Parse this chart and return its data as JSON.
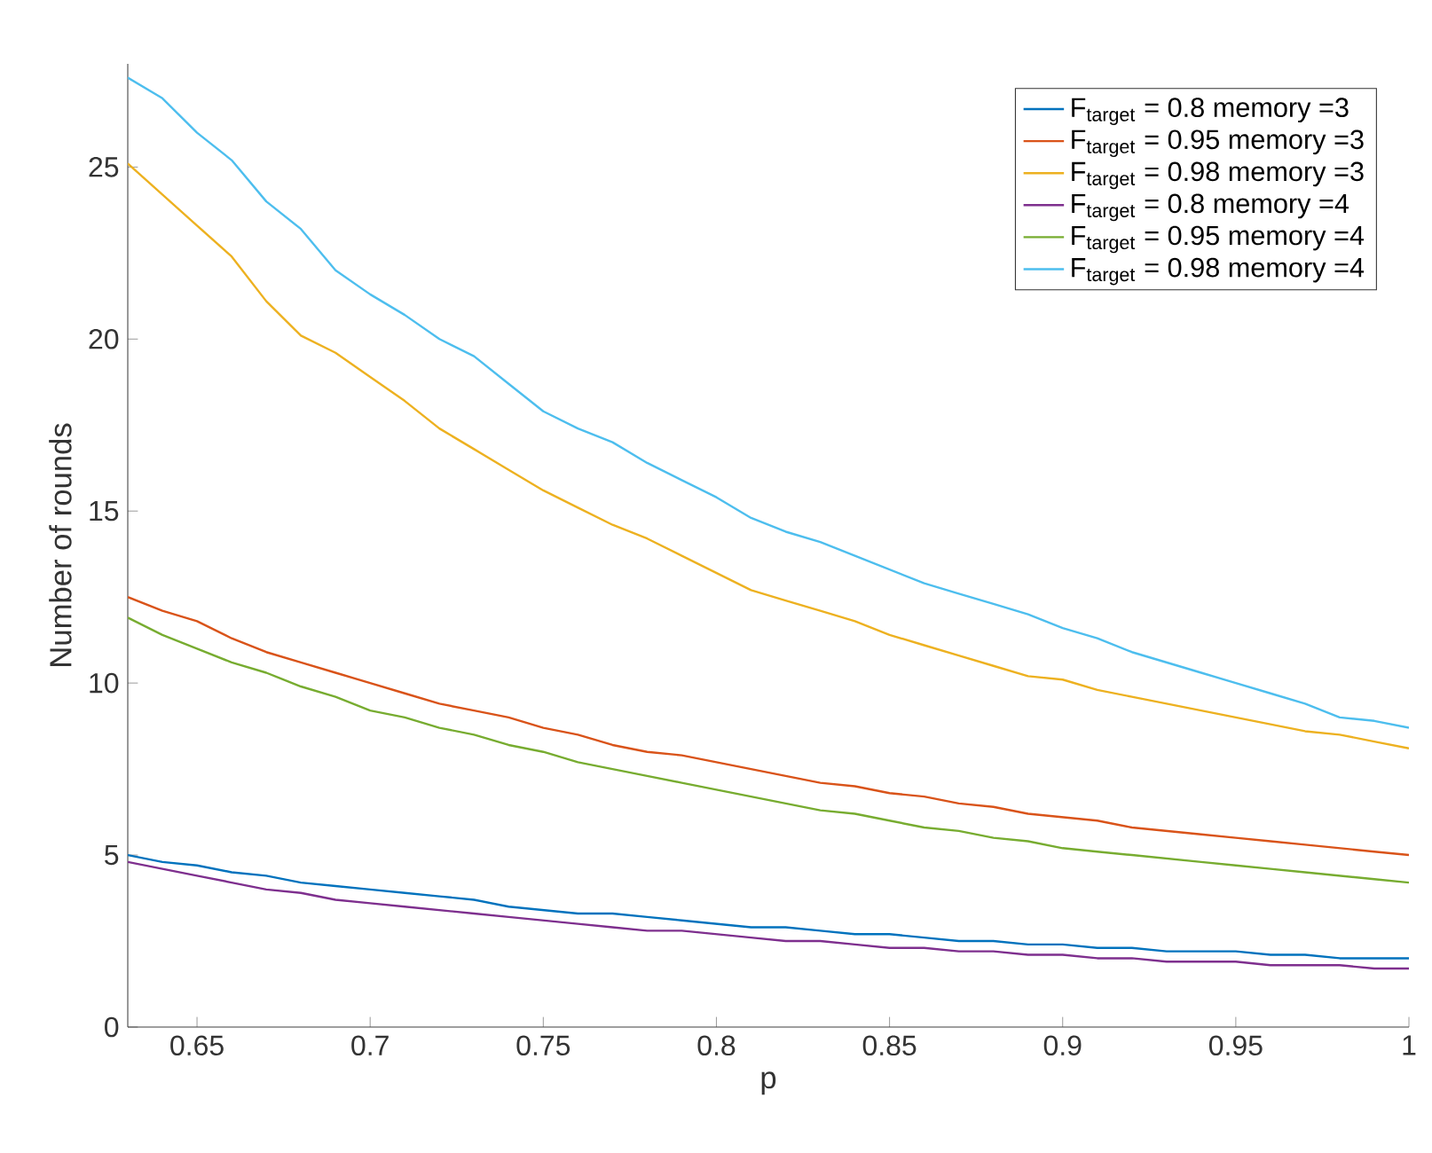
{
  "chart_data": {
    "type": "line",
    "xlabel": "p",
    "ylabel": "Number of rounds",
    "x": [
      0.63,
      0.64,
      0.65,
      0.66,
      0.67,
      0.68,
      0.69,
      0.7,
      0.71,
      0.72,
      0.73,
      0.74,
      0.75,
      0.76,
      0.77,
      0.78,
      0.79,
      0.8,
      0.81,
      0.82,
      0.83,
      0.84,
      0.85,
      0.86,
      0.87,
      0.88,
      0.89,
      0.9,
      0.91,
      0.92,
      0.93,
      0.94,
      0.95,
      0.96,
      0.97,
      0.98,
      0.99,
      1.0
    ],
    "series": [
      {
        "name": "F$_{target}$ = 0.8 memory =3",
        "color": "#0072bd",
        "values": [
          5.0,
          4.8,
          4.7,
          4.5,
          4.4,
          4.2,
          4.1,
          4.0,
          3.9,
          3.8,
          3.7,
          3.5,
          3.4,
          3.3,
          3.3,
          3.2,
          3.1,
          3.0,
          2.9,
          2.9,
          2.8,
          2.7,
          2.7,
          2.6,
          2.5,
          2.5,
          2.4,
          2.4,
          2.3,
          2.3,
          2.2,
          2.2,
          2.2,
          2.1,
          2.1,
          2.0,
          2.0,
          2.0
        ]
      },
      {
        "name": "F$_{target}$ = 0.95 memory =3",
        "color": "#d95319",
        "values": [
          12.5,
          12.1,
          11.8,
          11.3,
          10.9,
          10.6,
          10.3,
          10.0,
          9.7,
          9.4,
          9.2,
          9.0,
          8.7,
          8.5,
          8.2,
          8.0,
          7.9,
          7.7,
          7.5,
          7.3,
          7.1,
          7.0,
          6.8,
          6.7,
          6.5,
          6.4,
          6.2,
          6.1,
          6.0,
          5.8,
          5.7,
          5.6,
          5.5,
          5.4,
          5.3,
          5.2,
          5.1,
          5.0
        ]
      },
      {
        "name": "F$_{target}$ = 0.98 memory =3",
        "color": "#edb120",
        "values": [
          25.1,
          24.2,
          23.3,
          22.4,
          21.1,
          20.1,
          19.6,
          18.9,
          18.2,
          17.4,
          16.8,
          16.2,
          15.6,
          15.1,
          14.6,
          14.2,
          13.7,
          13.2,
          12.7,
          12.4,
          12.1,
          11.8,
          11.4,
          11.1,
          10.8,
          10.5,
          10.2,
          10.1,
          9.8,
          9.6,
          9.4,
          9.2,
          9.0,
          8.8,
          8.6,
          8.5,
          8.3,
          8.1
        ]
      },
      {
        "name": "F$_{target}$ = 0.8 memory =4",
        "color": "#7e2f8e",
        "values": [
          4.8,
          4.6,
          4.4,
          4.2,
          4.0,
          3.9,
          3.7,
          3.6,
          3.5,
          3.4,
          3.3,
          3.2,
          3.1,
          3.0,
          2.9,
          2.8,
          2.8,
          2.7,
          2.6,
          2.5,
          2.5,
          2.4,
          2.3,
          2.3,
          2.2,
          2.2,
          2.1,
          2.1,
          2.0,
          2.0,
          1.9,
          1.9,
          1.9,
          1.8,
          1.8,
          1.8,
          1.7,
          1.7
        ]
      },
      {
        "name": "F$_{target}$ = 0.95 memory =4",
        "color": "#77ac30",
        "values": [
          11.9,
          11.4,
          11.0,
          10.6,
          10.3,
          9.9,
          9.6,
          9.2,
          9.0,
          8.7,
          8.5,
          8.2,
          8.0,
          7.7,
          7.5,
          7.3,
          7.1,
          6.9,
          6.7,
          6.5,
          6.3,
          6.2,
          6.0,
          5.8,
          5.7,
          5.5,
          5.4,
          5.2,
          5.1,
          5.0,
          4.9,
          4.8,
          4.7,
          4.6,
          4.5,
          4.4,
          4.3,
          4.2
        ]
      },
      {
        "name": "F$_{target}$ = 0.98 memory =4",
        "color": "#4dbeee",
        "values": [
          27.6,
          27.0,
          26.0,
          25.2,
          24.0,
          23.2,
          22.0,
          21.3,
          20.7,
          20.0,
          19.5,
          18.7,
          17.9,
          17.4,
          17.0,
          16.4,
          15.9,
          15.4,
          14.8,
          14.4,
          14.1,
          13.7,
          13.3,
          12.9,
          12.6,
          12.3,
          12.0,
          11.6,
          11.3,
          10.9,
          10.6,
          10.3,
          10.0,
          9.7,
          9.4,
          9.0,
          8.9,
          8.7
        ]
      }
    ],
    "xlim": [
      0.63,
      1
    ],
    "ylim": [
      0,
      28
    ],
    "xticks": [
      0.65,
      0.7,
      0.75,
      0.8,
      0.85,
      0.9,
      0.95,
      1
    ],
    "yticks": [
      0,
      5,
      10,
      15,
      20,
      25
    ],
    "legend": "top right",
    "grid": false
  }
}
